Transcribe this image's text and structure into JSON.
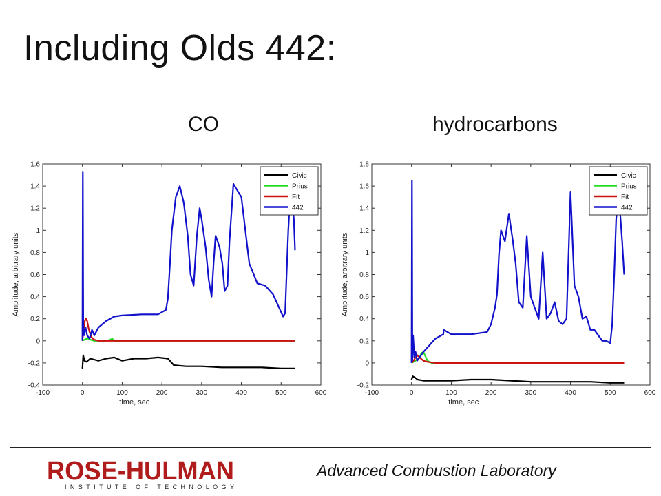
{
  "slide": {
    "title": "Including Olds 442:",
    "footer_lab": "Advanced Combustion Laboratory",
    "logo_text": "ROSE-HULMAN",
    "logo_subtext": "INSTITUTE OF TECHNOLOGY"
  },
  "colors": {
    "civic": "#000000",
    "prius": "#22dd22",
    "fit": "#cc1111",
    "olds442": "#1111cc",
    "logo_red": "#b01c1c"
  },
  "chart_data": [
    {
      "type": "line",
      "subtitle": "CO",
      "xlabel": "time, sec",
      "ylabel": "Amplitude, arbitrary units",
      "xlim": [
        -100,
        600
      ],
      "ylim": [
        -0.4,
        1.6
      ],
      "xticks": [
        "-100",
        "0",
        "100",
        "200",
        "300",
        "400",
        "500",
        "600"
      ],
      "yticks": [
        "-0.4",
        "-0.2",
        "0",
        "0.2",
        "0.4",
        "0.6",
        "0.8",
        "1",
        "1.2",
        "1.4",
        "1.6"
      ],
      "legend": "top-right",
      "series": [
        {
          "name": "Civic",
          "color": "#000000",
          "x": [
            0,
            2,
            5,
            10,
            20,
            40,
            60,
            80,
            100,
            130,
            160,
            190,
            215,
            230,
            260,
            300,
            350,
            400,
            450,
            500,
            535
          ],
          "y": [
            -0.25,
            -0.13,
            -0.18,
            -0.19,
            -0.16,
            -0.18,
            -0.16,
            -0.15,
            -0.18,
            -0.16,
            -0.16,
            -0.15,
            -0.16,
            -0.22,
            -0.23,
            -0.23,
            -0.24,
            -0.24,
            -0.24,
            -0.25,
            -0.25
          ]
        },
        {
          "name": "Prius",
          "color": "#22dd22",
          "x": [
            0,
            5,
            10,
            15,
            20,
            30,
            40,
            50,
            60,
            70,
            75,
            80,
            100,
            200,
            300,
            400,
            535
          ],
          "y": [
            0,
            0.01,
            0.02,
            0.02,
            0.01,
            0,
            0,
            0,
            0,
            0.01,
            0.02,
            0,
            0,
            0,
            0,
            0,
            0
          ]
        },
        {
          "name": "Fit",
          "color": "#cc1111",
          "x": [
            0,
            3,
            6,
            9,
            12,
            15,
            18,
            22,
            26,
            30,
            40,
            60,
            100,
            200,
            300,
            400,
            535
          ],
          "y": [
            0,
            0.1,
            0.18,
            0.2,
            0.18,
            0.12,
            0.08,
            0.04,
            0.02,
            0.01,
            0,
            0,
            0,
            0,
            0,
            0,
            0
          ]
        },
        {
          "name": "442",
          "color": "#1111cc",
          "x": [
            0,
            1,
            2,
            4,
            8,
            12,
            18,
            24,
            30,
            40,
            60,
            80,
            100,
            150,
            190,
            210,
            215,
            220,
            225,
            235,
            245,
            255,
            265,
            272,
            280,
            288,
            295,
            300,
            310,
            318,
            325,
            330,
            335,
            345,
            352,
            358,
            365,
            370,
            380,
            400,
            420,
            440,
            460,
            480,
            495,
            505,
            510,
            518,
            525,
            532,
            535
          ],
          "y": [
            0,
            1.53,
            0.15,
            0.05,
            0.12,
            0.05,
            0.02,
            0.1,
            0.05,
            0.12,
            0.18,
            0.22,
            0.23,
            0.24,
            0.24,
            0.28,
            0.38,
            0.68,
            1.0,
            1.3,
            1.4,
            1.25,
            0.95,
            0.6,
            0.5,
            0.95,
            1.2,
            1.1,
            0.85,
            0.55,
            0.4,
            0.7,
            0.95,
            0.85,
            0.7,
            0.45,
            0.5,
            0.9,
            1.42,
            1.3,
            0.7,
            0.52,
            0.5,
            0.42,
            0.3,
            0.22,
            0.25,
            1.0,
            1.45,
            1.1,
            0.82
          ]
        }
      ]
    },
    {
      "type": "line",
      "subtitle": "hydrocarbons",
      "xlabel": "time, sec",
      "ylabel": "Amplitude, arbitrary units",
      "xlim": [
        -100,
        600
      ],
      "ylim": [
        -0.2,
        1.8
      ],
      "xticks": [
        "-100",
        "0",
        "100",
        "200",
        "300",
        "400",
        "500",
        "600"
      ],
      "yticks": [
        "-0.2",
        "0",
        "0.2",
        "0.4",
        "0.6",
        "0.8",
        "1",
        "1.2",
        "1.4",
        "1.6",
        "1.8"
      ],
      "legend": "top-right",
      "series": [
        {
          "name": "Civic",
          "color": "#000000",
          "x": [
            0,
            3,
            8,
            15,
            30,
            60,
            100,
            150,
            200,
            250,
            300,
            350,
            400,
            450,
            500,
            535
          ],
          "y": [
            -0.15,
            -0.12,
            -0.13,
            -0.15,
            -0.16,
            -0.16,
            -0.16,
            -0.15,
            -0.15,
            -0.16,
            -0.17,
            -0.17,
            -0.17,
            -0.17,
            -0.18,
            -0.18
          ]
        },
        {
          "name": "Prius",
          "color": "#22dd22",
          "x": [
            0,
            10,
            20,
            25,
            30,
            35,
            40,
            50,
            80,
            200,
            300,
            400,
            535
          ],
          "y": [
            0,
            0.02,
            0.05,
            0.09,
            0.1,
            0.06,
            0.02,
            0,
            0,
            0,
            0,
            0,
            0
          ]
        },
        {
          "name": "Fit",
          "color": "#cc1111",
          "x": [
            0,
            5,
            10,
            15,
            20,
            30,
            40,
            60,
            100,
            200,
            300,
            400,
            535
          ],
          "y": [
            0,
            0.02,
            0.05,
            0.07,
            0.05,
            0.02,
            0.01,
            0,
            0,
            0,
            0,
            0,
            0
          ]
        },
        {
          "name": "442",
          "color": "#1111cc",
          "x": [
            0,
            1,
            2,
            4,
            7,
            10,
            14,
            20,
            30,
            40,
            60,
            80,
            81,
            100,
            150,
            190,
            200,
            210,
            215,
            220,
            225,
            235,
            245,
            255,
            262,
            270,
            280,
            290,
            300,
            310,
            320,
            330,
            340,
            350,
            360,
            370,
            380,
            390,
            400,
            410,
            420,
            430,
            440,
            450,
            460,
            470,
            480,
            490,
            500,
            505,
            510,
            515,
            520,
            525,
            530,
            535
          ],
          "y": [
            0,
            1.65,
            0.02,
            0.25,
            0.05,
            0.1,
            0.02,
            0.05,
            0.1,
            0.14,
            0.22,
            0.26,
            0.3,
            0.26,
            0.26,
            0.28,
            0.35,
            0.5,
            0.62,
            0.98,
            1.2,
            1.1,
            1.35,
            1.1,
            0.9,
            0.55,
            0.5,
            1.15,
            0.6,
            0.5,
            0.4,
            1.0,
            0.4,
            0.45,
            0.55,
            0.38,
            0.35,
            0.4,
            1.55,
            0.7,
            0.6,
            0.4,
            0.42,
            0.3,
            0.3,
            0.25,
            0.2,
            0.2,
            0.18,
            0.35,
            0.8,
            1.3,
            1.5,
            1.35,
            1.1,
            0.8
          ]
        }
      ]
    }
  ]
}
